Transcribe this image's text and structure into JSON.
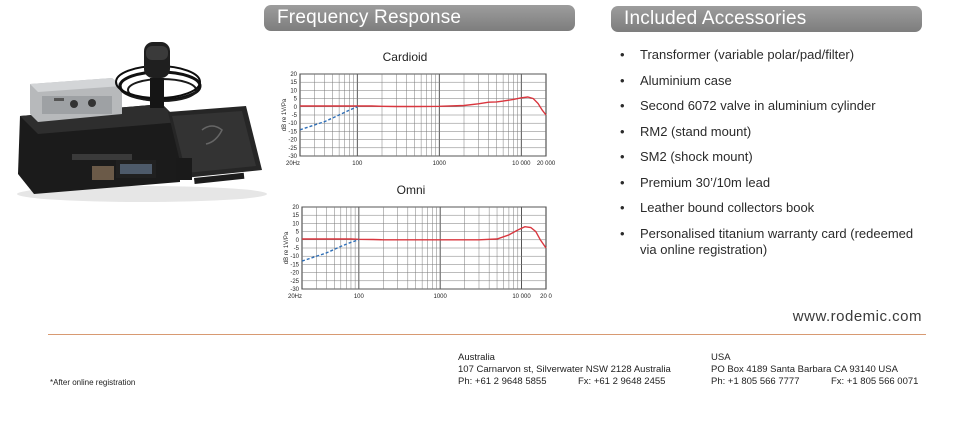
{
  "headers": {
    "frequency_response": "Frequency Response",
    "included_accessories": "Included Accessories"
  },
  "chart_data": [
    {
      "type": "line",
      "title": "Cardioid",
      "xscale": "log",
      "xlim": [
        20,
        20000
      ],
      "ylim": [
        -30,
        20
      ],
      "ylabel": "dB re 1V/Pa",
      "xlabel": "",
      "x_tick_labels": [
        "20Hz",
        "100",
        "1000",
        "10 000",
        "20 000"
      ],
      "x_tick_values": [
        20,
        100,
        1000,
        10000,
        20000
      ],
      "y_tick_labels": [
        "20",
        "15",
        "10",
        "5",
        "0",
        "-5",
        "-10",
        "-15",
        "-20",
        "-25",
        "-30"
      ],
      "y_tick_values": [
        20,
        15,
        10,
        5,
        0,
        -5,
        -10,
        -15,
        -20,
        -25,
        -30
      ],
      "grid": true,
      "series": [
        {
          "color": "#d9363e",
          "style": "solid",
          "x": [
            20,
            40,
            60,
            80,
            100,
            150,
            200,
            300,
            500,
            1000,
            2000,
            3000,
            4000,
            5000,
            6000,
            8000,
            10000,
            12000,
            14000,
            16000,
            18000,
            20000
          ],
          "y": [
            0.5,
            0.5,
            0.5,
            0.5,
            0.5,
            0.5,
            0.3,
            0.2,
            0.2,
            0.3,
            0.8,
            1.8,
            2.8,
            3.0,
            3.5,
            4.5,
            5.5,
            6.0,
            5.0,
            2.0,
            -2.0,
            -5.0
          ]
        },
        {
          "color": "#2f6fb7",
          "style": "dashed",
          "x": [
            20,
            40,
            60,
            80,
            100
          ],
          "y": [
            -14,
            -9,
            -5,
            -2,
            0
          ]
        }
      ]
    },
    {
      "type": "line",
      "title": "Omni",
      "xscale": "log",
      "xlim": [
        20,
        20000
      ],
      "ylim": [
        -30,
        20
      ],
      "ylabel": "dB re 1V/Pa",
      "xlabel": "",
      "x_tick_labels": [
        "20Hz",
        "100",
        "1000",
        "10 000",
        "20 0"
      ],
      "x_tick_values": [
        20,
        100,
        1000,
        10000,
        20000
      ],
      "y_tick_labels": [
        "20",
        "15",
        "10",
        "5",
        "0",
        "-5",
        "-10",
        "-15",
        "-20",
        "-25",
        "-30"
      ],
      "y_tick_values": [
        20,
        15,
        10,
        5,
        0,
        -5,
        -10,
        -15,
        -20,
        -25,
        -30
      ],
      "grid": true,
      "series": [
        {
          "color": "#d9363e",
          "style": "solid",
          "x": [
            20,
            40,
            60,
            80,
            100,
            150,
            200,
            300,
            500,
            1000,
            2000,
            3000,
            4000,
            5000,
            7000,
            9000,
            11000,
            13000,
            15000,
            17000,
            20000
          ],
          "y": [
            0.5,
            0.5,
            0.5,
            0.5,
            0.3,
            0.2,
            0.0,
            0.0,
            0.0,
            0.0,
            0.0,
            0.0,
            0.3,
            0.5,
            3.0,
            6.0,
            8.0,
            7.5,
            5.0,
            0.0,
            -5.0
          ]
        },
        {
          "color": "#2f6fb7",
          "style": "dashed",
          "x": [
            20,
            40,
            60,
            80,
            100
          ],
          "y": [
            -13,
            -8,
            -4,
            -1.5,
            0
          ]
        }
      ]
    }
  ],
  "accessories": [
    "Transformer (variable polar/pad/filter)",
    "Aluminium case",
    "Second 6072 valve in aluminium cylinder",
    "RM2 (stand mount)",
    "SM2 (shock mount)",
    "Premium 30’/10m lead",
    "Leather bound collectors book",
    "Personalised titanium warranty card (redeemed via online registration)"
  ],
  "bullet": "•",
  "website": "www.rodemic.com",
  "footnote": "*After online registration",
  "australia": {
    "country": "Australia",
    "address": "107 Carnarvon st, Silverwater NSW 2128 Australia",
    "phone": "Ph: +61 2 9648 5855",
    "fax": "Fx: +61 2 9648 2455"
  },
  "usa": {
    "country": "USA",
    "address": "PO Box 4189 Santa Barbara CA 93140 USA",
    "phone": "Ph: +1 805 566 7777",
    "fax": "Fx: +1 805 566 0071"
  },
  "colors": {
    "header_bar": "#8a8a8a",
    "divider": "#d89a72",
    "response_curve": "#d9363e",
    "low_cut_curve": "#2f6fb7"
  }
}
